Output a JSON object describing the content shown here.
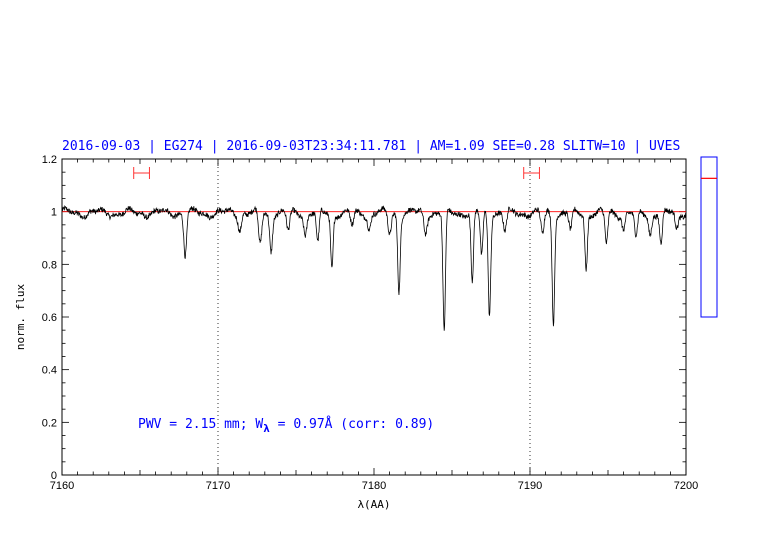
{
  "header": {
    "title": "2016-09-03 | EG274 | 2016-09-03T23:34:11.781 | AM=1.09  SEE=0.28  SLITW=10 | UVES"
  },
  "annotation": {
    "pwv_text": "PWV = 2.15 mm; W",
    "w_sub": "λ",
    "w_text": " = 0.97Å  (corr: 0.89)"
  },
  "chart_data": {
    "type": "line",
    "title": "",
    "xlabel": "λ(AA)",
    "ylabel": "norm. flux",
    "xlim": [
      7160,
      7200
    ],
    "ylim": [
      0,
      1.2
    ],
    "x_ticks": [
      7160,
      7170,
      7180,
      7190,
      7200
    ],
    "x_tick_labels": [
      "7160",
      "7170",
      "7180",
      "7190",
      "7200"
    ],
    "y_ticks": [
      0,
      0.2,
      0.4,
      0.6,
      0.8,
      1,
      1.2
    ],
    "y_tick_labels": [
      "0",
      "0.2",
      "0.4",
      "0.6",
      "0.8",
      "1",
      "1.2"
    ],
    "continuum_level": 1.0,
    "vertical_markers": [
      7170,
      7190
    ],
    "continuum_windows": [
      [
        7164.6,
        7165.6
      ],
      [
        7189.6,
        7190.6
      ]
    ],
    "absorption_lines": [
      {
        "x": 7167.9,
        "depth": 0.16,
        "width": 0.09
      },
      {
        "x": 7171.4,
        "depth": 0.06,
        "width": 0.1
      },
      {
        "x": 7172.7,
        "depth": 0.12,
        "width": 0.1
      },
      {
        "x": 7173.4,
        "depth": 0.14,
        "width": 0.09
      },
      {
        "x": 7174.5,
        "depth": 0.07,
        "width": 0.1
      },
      {
        "x": 7175.6,
        "depth": 0.08,
        "width": 0.1
      },
      {
        "x": 7176.4,
        "depth": 0.12,
        "width": 0.09
      },
      {
        "x": 7177.3,
        "depth": 0.21,
        "width": 0.08
      },
      {
        "x": 7178.6,
        "depth": 0.05,
        "width": 0.1
      },
      {
        "x": 7179.7,
        "depth": 0.06,
        "width": 0.1
      },
      {
        "x": 7181.0,
        "depth": 0.08,
        "width": 0.1
      },
      {
        "x": 7181.6,
        "depth": 0.29,
        "width": 0.08
      },
      {
        "x": 7183.3,
        "depth": 0.07,
        "width": 0.1
      },
      {
        "x": 7184.5,
        "depth": 0.46,
        "width": 0.08
      },
      {
        "x": 7186.3,
        "depth": 0.27,
        "width": 0.08
      },
      {
        "x": 7186.9,
        "depth": 0.17,
        "width": 0.08
      },
      {
        "x": 7187.4,
        "depth": 0.38,
        "width": 0.08
      },
      {
        "x": 7188.4,
        "depth": 0.07,
        "width": 0.1
      },
      {
        "x": 7190.8,
        "depth": 0.08,
        "width": 0.1
      },
      {
        "x": 7191.5,
        "depth": 0.41,
        "width": 0.08
      },
      {
        "x": 7192.6,
        "depth": 0.07,
        "width": 0.1
      },
      {
        "x": 7193.6,
        "depth": 0.21,
        "width": 0.08
      },
      {
        "x": 7194.9,
        "depth": 0.12,
        "width": 0.09
      },
      {
        "x": 7196.0,
        "depth": 0.06,
        "width": 0.1
      },
      {
        "x": 7196.8,
        "depth": 0.1,
        "width": 0.1
      },
      {
        "x": 7197.7,
        "depth": 0.08,
        "width": 0.1
      },
      {
        "x": 7198.4,
        "depth": 0.12,
        "width": 0.09
      },
      {
        "x": 7199.4,
        "depth": 0.06,
        "width": 0.1
      }
    ],
    "side_indicator": {
      "ylim": [
        0,
        1.2
      ],
      "marker": 1.04
    }
  },
  "colors": {
    "spectrum": "#000000",
    "continuum": "#ff0000",
    "text": "#0000ff",
    "indicator_box": "#0000ff",
    "indicator_marker": "#ff0000"
  }
}
